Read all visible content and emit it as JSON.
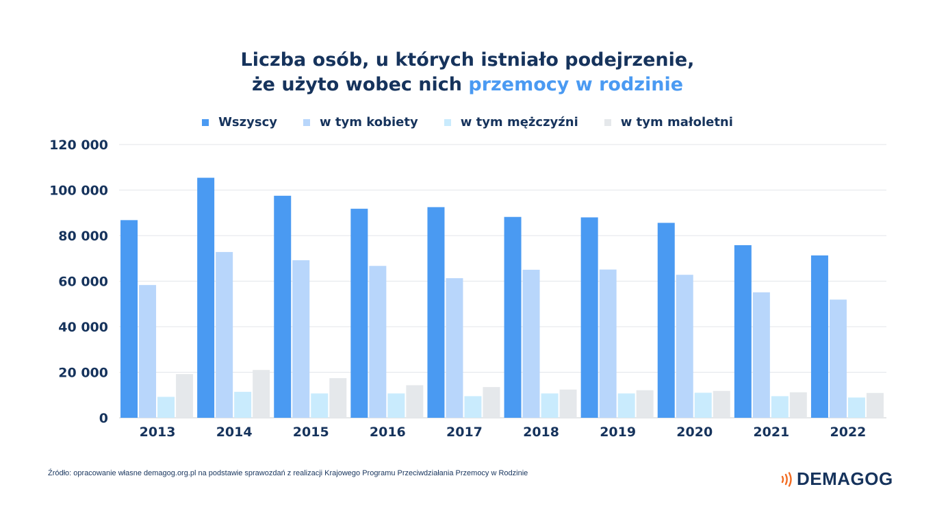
{
  "title": {
    "line1": "Liczba osób, u których istniało podejrzenie,",
    "line2_prefix": "że użyto wobec nich ",
    "line2_highlight": "przemocy w rodzinie"
  },
  "legend": [
    {
      "label": "Wszyscy",
      "color": "#4a9af2"
    },
    {
      "label": "w tym kobiety",
      "color": "#b8d6fb"
    },
    {
      "label": "w tym mężczyźni",
      "color": "#c9ebfd"
    },
    {
      "label": "w tym małoletni",
      "color": "#e5e8eb"
    }
  ],
  "chart_data": {
    "type": "bar",
    "categories": [
      "2013",
      "2014",
      "2015",
      "2016",
      "2017",
      "2018",
      "2019",
      "2020",
      "2021",
      "2022"
    ],
    "series": [
      {
        "name": "Wszyscy",
        "color": "#4a9af2",
        "values": [
          86800,
          105400,
          97500,
          91800,
          92500,
          88200,
          88000,
          85600,
          75800,
          71300
        ]
      },
      {
        "name": "w tym kobiety",
        "color": "#b8d6fb",
        "values": [
          58300,
          72800,
          69200,
          66700,
          61300,
          65000,
          65100,
          62800,
          55100,
          51900
        ]
      },
      {
        "name": "w tym mężczyźni",
        "color": "#c9ebfd",
        "values": [
          9200,
          11400,
          10700,
          10700,
          9500,
          10700,
          10700,
          11000,
          9500,
          8900
        ]
      },
      {
        "name": "w tym małoletni",
        "color": "#e5e8eb",
        "values": [
          19200,
          21000,
          17400,
          14300,
          13500,
          12400,
          12100,
          11800,
          11200,
          10900
        ]
      }
    ],
    "y_ticks": [
      "0",
      "20 000",
      "40 000",
      "60 000",
      "80 000",
      "100 000",
      "120 000"
    ],
    "ylim": [
      0,
      120000
    ],
    "grid": true,
    "legend_position": "top"
  },
  "footer": {
    "source": "Źródło: opracowanie własne demagog.org.pl na podstawie sprawozdań z realizacji Krajowego Programu Przeciwdziałania Przemocy w Rodzinie"
  },
  "logo": {
    "text": "DEMAGOG",
    "accent_color": "#f26b21"
  }
}
